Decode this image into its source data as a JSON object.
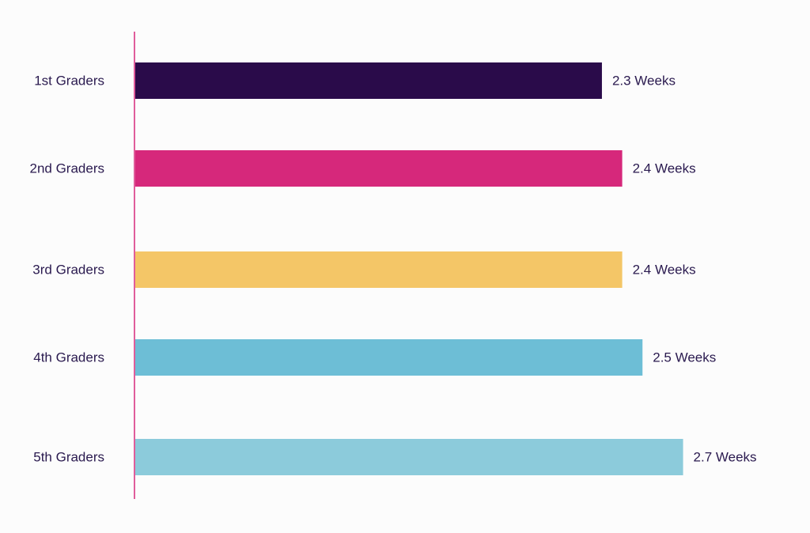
{
  "chart_data": {
    "type": "bar",
    "orientation": "horizontal",
    "title": "",
    "xlabel": "",
    "ylabel": "",
    "categories": [
      "1st Graders",
      "2nd Graders",
      "3rd Graders",
      "4th Graders",
      "5th Graders"
    ],
    "values": [
      2.3,
      2.4,
      2.4,
      2.5,
      2.7
    ],
    "value_labels": [
      "2.3 Weeks",
      "2.4 Weeks",
      "2.4 Weeks",
      "2.5 Weeks",
      "2.7 Weeks"
    ],
    "colors": [
      "#2a0b4a",
      "#d6287b",
      "#f4c667",
      "#6dbed6",
      "#8ccbdb"
    ],
    "axis_color": "#d6287b",
    "text_color": "#2a1a4f",
    "xlim": [
      0,
      2.7
    ],
    "grid": false,
    "legend": "none"
  }
}
